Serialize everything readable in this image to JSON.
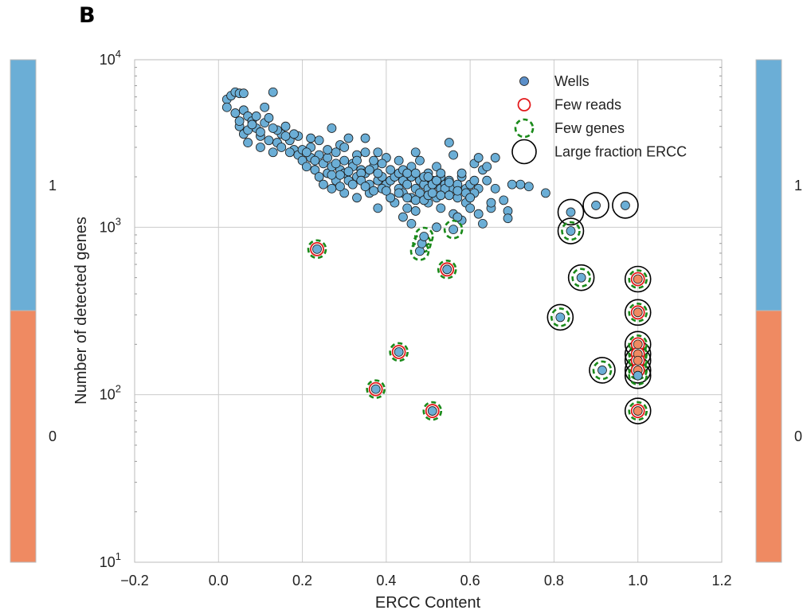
{
  "panel_label": "B",
  "chart_data": {
    "type": "scatter",
    "xlabel": "ERCC Content",
    "ylabel": "Number of detected genes",
    "xlim": [
      -0.2,
      1.2
    ],
    "ylim": [
      10,
      10000
    ],
    "yscale": "log",
    "grid": true,
    "legend_position": "top-right",
    "x_ticks": [
      "−0.2",
      "0.0",
      "0.2",
      "0.4",
      "0.6",
      "0.8",
      "1.0",
      "1.2"
    ],
    "y_ticks": [
      {
        "base": "10",
        "exp": "1"
      },
      {
        "base": "10",
        "exp": "2"
      },
      {
        "base": "10",
        "exp": "3"
      },
      {
        "base": "10",
        "exp": "4"
      }
    ],
    "colors": {
      "class_1": "#6baed6",
      "class_0": "#ef8a62",
      "few_reads": "#e31a1c",
      "few_genes": "#1a8a1a",
      "large_ercc": "#000000",
      "grid": "#cccccc"
    },
    "legend": [
      {
        "label": "Wells",
        "marker": "dot"
      },
      {
        "label": "Few reads",
        "marker": "red-ring"
      },
      {
        "label": "Few genes",
        "marker": "green-dashed-ring"
      },
      {
        "label": "Large fraction ERCC",
        "marker": "black-ring"
      }
    ],
    "colorbars": [
      {
        "side": "left",
        "labels": [
          "1",
          "0"
        ]
      },
      {
        "side": "right",
        "labels": [
          "1",
          "0"
        ]
      }
    ],
    "series": [
      {
        "name": "Wells",
        "points": [
          [
            0.02,
            5800
          ],
          [
            0.03,
            6100
          ],
          [
            0.04,
            6400
          ],
          [
            0.05,
            6300
          ],
          [
            0.02,
            5200
          ],
          [
            0.06,
            5000
          ],
          [
            0.07,
            4600
          ],
          [
            0.04,
            4800
          ],
          [
            0.08,
            4300
          ],
          [
            0.05,
            4000
          ],
          [
            0.09,
            3900
          ],
          [
            0.06,
            3600
          ],
          [
            0.1,
            3500
          ],
          [
            0.07,
            3200
          ],
          [
            0.11,
            4200
          ],
          [
            0.12,
            3300
          ],
          [
            0.1,
            3000
          ],
          [
            0.13,
            2800
          ],
          [
            0.15,
            3600
          ],
          [
            0.14,
            3200
          ],
          [
            0.16,
            4000
          ],
          [
            0.17,
            3300
          ],
          [
            0.18,
            2900
          ],
          [
            0.19,
            2700
          ],
          [
            0.2,
            2500
          ],
          [
            0.21,
            2300
          ],
          [
            0.22,
            2600
          ],
          [
            0.23,
            2200
          ],
          [
            0.24,
            2000
          ],
          [
            0.25,
            2400
          ],
          [
            0.26,
            2100
          ],
          [
            0.27,
            2300
          ],
          [
            0.28,
            1900
          ],
          [
            0.29,
            2200
          ],
          [
            0.3,
            2100
          ],
          [
            0.31,
            1900
          ],
          [
            0.32,
            2400
          ],
          [
            0.33,
            2000
          ],
          [
            0.34,
            2200
          ],
          [
            0.35,
            2100
          ],
          [
            0.36,
            1800
          ],
          [
            0.37,
            2300
          ],
          [
            0.38,
            1900
          ],
          [
            0.39,
            2000
          ],
          [
            0.4,
            1800
          ],
          [
            0.41,
            1900
          ],
          [
            0.42,
            2000
          ],
          [
            0.43,
            1700
          ],
          [
            0.44,
            1900
          ],
          [
            0.45,
            1800
          ],
          [
            0.46,
            2000
          ],
          [
            0.47,
            1700
          ],
          [
            0.48,
            1900
          ],
          [
            0.49,
            1800
          ],
          [
            0.5,
            1700
          ],
          [
            0.51,
            1900
          ],
          [
            0.52,
            1800
          ],
          [
            0.53,
            1700
          ],
          [
            0.54,
            1800
          ],
          [
            0.55,
            1900
          ],
          [
            0.56,
            1700
          ],
          [
            0.57,
            1800
          ],
          [
            0.58,
            2000
          ],
          [
            0.59,
            1700
          ],
          [
            0.6,
            1800
          ],
          [
            0.61,
            1900
          ],
          [
            0.62,
            1700
          ],
          [
            0.63,
            2200
          ],
          [
            0.64,
            1900
          ],
          [
            0.66,
            1700
          ],
          [
            0.13,
            6400
          ],
          [
            0.06,
            6300
          ],
          [
            0.11,
            5200
          ],
          [
            0.09,
            4600
          ],
          [
            0.14,
            3800
          ],
          [
            0.16,
            3500
          ],
          [
            0.19,
            3500
          ],
          [
            0.22,
            3400
          ],
          [
            0.24,
            3300
          ],
          [
            0.27,
            3900
          ],
          [
            0.29,
            3100
          ],
          [
            0.31,
            3400
          ],
          [
            0.33,
            2700
          ],
          [
            0.35,
            3400
          ],
          [
            0.38,
            2800
          ],
          [
            0.4,
            2600
          ],
          [
            0.43,
            2500
          ],
          [
            0.46,
            2300
          ],
          [
            0.48,
            2500
          ],
          [
            0.52,
            2300
          ],
          [
            0.55,
            3200
          ],
          [
            0.56,
            2700
          ],
          [
            0.58,
            2100
          ],
          [
            0.61,
            2400
          ],
          [
            0.62,
            2600
          ],
          [
            0.64,
            2300
          ],
          [
            0.66,
            2600
          ],
          [
            0.47,
            2800
          ],
          [
            0.5,
            2100
          ],
          [
            0.53,
            2000
          ],
          [
            0.2,
            2900
          ],
          [
            0.22,
            3000
          ],
          [
            0.24,
            2700
          ],
          [
            0.26,
            2600
          ],
          [
            0.28,
            2400
          ],
          [
            0.3,
            2500
          ],
          [
            0.32,
            2300
          ],
          [
            0.34,
            2100
          ],
          [
            0.36,
            2200
          ],
          [
            0.38,
            2100
          ],
          [
            0.25,
            1800
          ],
          [
            0.27,
            1700
          ],
          [
            0.3,
            1600
          ],
          [
            0.33,
            1500
          ],
          [
            0.36,
            1600
          ],
          [
            0.39,
            1700
          ],
          [
            0.41,
            1500
          ],
          [
            0.44,
            1600
          ],
          [
            0.46,
            1500
          ],
          [
            0.48,
            1600
          ],
          [
            0.52,
            1500
          ],
          [
            0.54,
            1600
          ],
          [
            0.57,
            1500
          ],
          [
            0.59,
            1400
          ],
          [
            0.61,
            1600
          ],
          [
            0.38,
            1300
          ],
          [
            0.42,
            1400
          ],
          [
            0.45,
            1300
          ],
          [
            0.47,
            1250
          ],
          [
            0.5,
            1400
          ],
          [
            0.53,
            1300
          ],
          [
            0.56,
            1200
          ],
          [
            0.58,
            1100
          ],
          [
            0.6,
            1300
          ],
          [
            0.62,
            1200
          ],
          [
            0.65,
            1300
          ],
          [
            0.69,
            1250
          ],
          [
            0.69,
            1130
          ],
          [
            0.72,
            1800
          ],
          [
            0.74,
            1750
          ],
          [
            0.78,
            1600
          ],
          [
            0.7,
            1800
          ],
          [
            0.65,
            1400
          ],
          [
            0.68,
            1450
          ],
          [
            0.57,
            1150
          ],
          [
            0.63,
            1050
          ],
          [
            0.52,
            1000
          ],
          [
            0.44,
            1150
          ],
          [
            0.46,
            1050
          ],
          [
            0.41,
            1500
          ],
          [
            0.05,
            4300
          ],
          [
            0.07,
            3800
          ],
          [
            0.08,
            4100
          ],
          [
            0.1,
            3700
          ],
          [
            0.12,
            4500
          ],
          [
            0.13,
            3900
          ],
          [
            0.15,
            3000
          ],
          [
            0.17,
            2800
          ],
          [
            0.18,
            3600
          ],
          [
            0.21,
            2800
          ],
          [
            0.23,
            2500
          ],
          [
            0.26,
            2900
          ],
          [
            0.28,
            2800
          ],
          [
            0.3,
            3000
          ],
          [
            0.33,
            2500
          ],
          [
            0.35,
            2800
          ],
          [
            0.37,
            2500
          ],
          [
            0.39,
            2400
          ],
          [
            0.41,
            2200
          ],
          [
            0.43,
            2100
          ],
          [
            0.44,
            2200
          ],
          [
            0.45,
            2100
          ],
          [
            0.47,
            2100
          ],
          [
            0.49,
            2000
          ],
          [
            0.5,
            2000
          ],
          [
            0.51,
            1800
          ],
          [
            0.52,
            1900
          ],
          [
            0.53,
            2100
          ],
          [
            0.54,
            1700
          ],
          [
            0.55,
            1850
          ],
          [
            0.31,
            2150
          ],
          [
            0.29,
            2050
          ],
          [
            0.27,
            2050
          ],
          [
            0.34,
            1900
          ],
          [
            0.32,
            1800
          ],
          [
            0.29,
            1750
          ],
          [
            0.35,
            1750
          ],
          [
            0.37,
            1650
          ],
          [
            0.4,
            1650
          ],
          [
            0.43,
            1600
          ],
          [
            0.45,
            1500
          ],
          [
            0.47,
            1450
          ],
          [
            0.49,
            1450
          ],
          [
            0.5,
            1550
          ],
          [
            0.51,
            1600
          ],
          [
            0.53,
            1550
          ],
          [
            0.55,
            1550
          ],
          [
            0.57,
            1650
          ],
          [
            0.59,
            1600
          ],
          [
            0.6,
            1500
          ]
        ]
      },
      {
        "name": "Few reads",
        "points": [
          [
            0.235,
            740
          ],
          [
            0.375,
            108
          ],
          [
            0.43,
            180
          ],
          [
            0.51,
            80
          ],
          [
            0.545,
            560
          ],
          [
            1.0,
            490
          ],
          [
            1.0,
            310
          ],
          [
            1.0,
            200
          ],
          [
            1.0,
            175
          ],
          [
            1.0,
            160
          ],
          [
            1.0,
            140
          ],
          [
            1.0,
            80
          ]
        ]
      },
      {
        "name": "Few genes",
        "points": [
          [
            0.235,
            740
          ],
          [
            0.375,
            108
          ],
          [
            0.43,
            180
          ],
          [
            0.51,
            80
          ],
          [
            0.545,
            560
          ],
          [
            0.48,
            720
          ],
          [
            0.485,
            800
          ],
          [
            0.49,
            880
          ],
          [
            0.56,
            970
          ],
          [
            0.84,
            950
          ],
          [
            0.865,
            500
          ],
          [
            0.815,
            290
          ],
          [
            0.915,
            140
          ],
          [
            1.0,
            490
          ],
          [
            1.0,
            310
          ],
          [
            1.0,
            200
          ],
          [
            1.0,
            175
          ],
          [
            1.0,
            160
          ],
          [
            1.0,
            140
          ],
          [
            1.0,
            130
          ],
          [
            1.0,
            80
          ]
        ]
      },
      {
        "name": "Large fraction ERCC",
        "points": [
          [
            0.84,
            1230
          ],
          [
            0.9,
            1350
          ],
          [
            0.97,
            1350
          ],
          [
            0.84,
            950
          ],
          [
            0.865,
            500
          ],
          [
            0.815,
            290
          ],
          [
            0.915,
            140
          ],
          [
            1.0,
            490
          ],
          [
            1.0,
            310
          ],
          [
            1.0,
            200
          ],
          [
            1.0,
            175
          ],
          [
            1.0,
            160
          ],
          [
            1.0,
            140
          ],
          [
            1.0,
            130
          ],
          [
            1.0,
            80
          ]
        ]
      }
    ],
    "well_classes": [
      {
        "class": "0",
        "points": [
          [
            1.0,
            490
          ],
          [
            1.0,
            310
          ],
          [
            1.0,
            200
          ],
          [
            1.0,
            175
          ],
          [
            1.0,
            160
          ],
          [
            1.0,
            140
          ],
          [
            1.0,
            80
          ]
        ]
      }
    ]
  }
}
